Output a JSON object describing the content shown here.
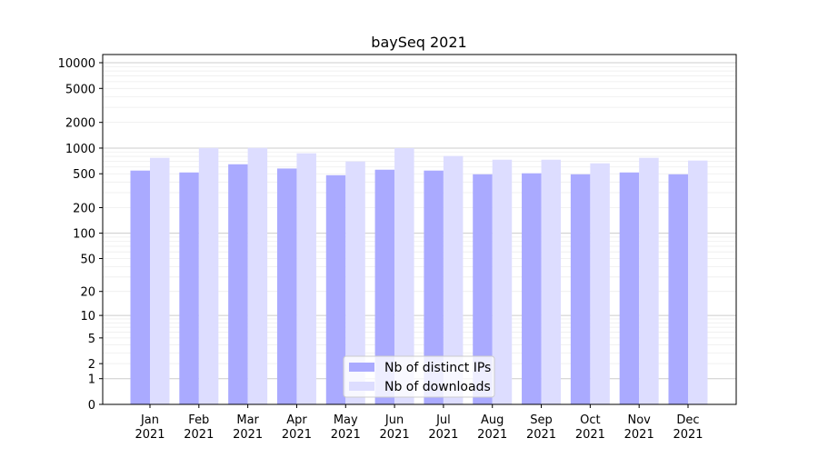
{
  "chart_data": {
    "type": "bar",
    "title": "baySeq 2021",
    "xlabel": "",
    "ylabel": "",
    "y_scale": "log(1+x)",
    "ylim": [
      0,
      12500
    ],
    "y_ticks": [
      0,
      1,
      2,
      5,
      10,
      20,
      50,
      100,
      200,
      500,
      1000,
      2000,
      5000,
      10000
    ],
    "grid": true,
    "legend_position": "lower center",
    "categories": [
      "Jan\n2021",
      "Feb\n2021",
      "Mar\n2021",
      "Apr\n2021",
      "May\n2021",
      "Jun\n2021",
      "Jul\n2021",
      "Aug\n2021",
      "Sep\n2021",
      "Oct\n2021",
      "Nov\n2021",
      "Dec\n2021"
    ],
    "series": [
      {
        "name": "Nb of distinct IPs",
        "color": "#aaaaff",
        "values": [
          545,
          518,
          646,
          576,
          481,
          558,
          545,
          493,
          506,
          493,
          518,
          493
        ]
      },
      {
        "name": "Nb of downloads",
        "color": "#ddddff",
        "values": [
          769,
          1003,
          1005,
          869,
          697,
          1001,
          807,
          731,
          731,
          663,
          769,
          714
        ]
      }
    ]
  }
}
